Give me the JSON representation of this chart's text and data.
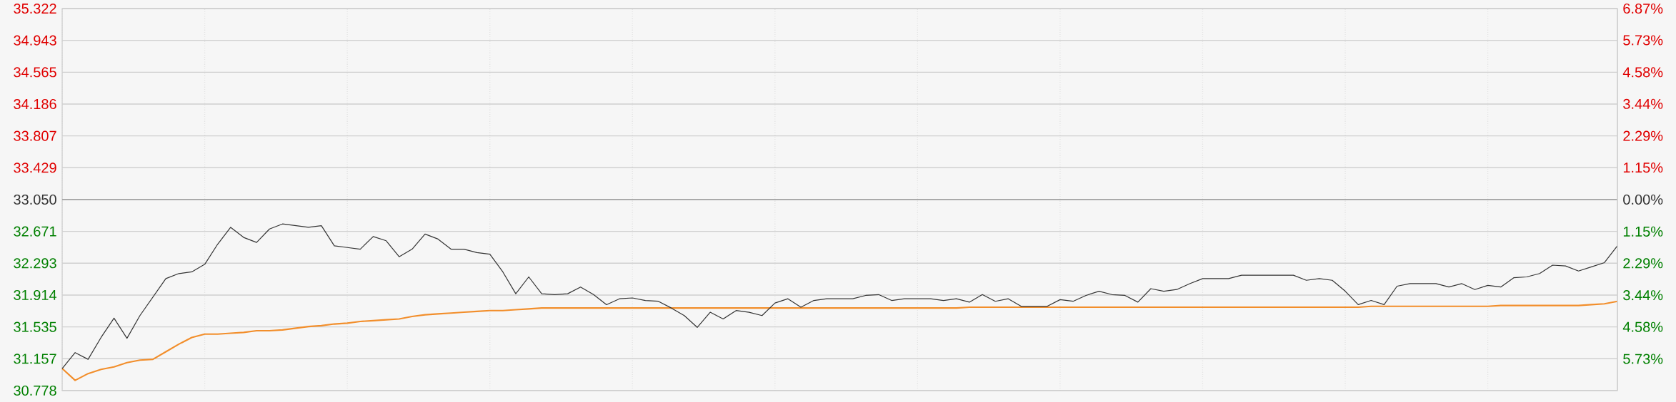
{
  "chart_data": {
    "type": "line",
    "categories": [
      null,
      null,
      null,
      null,
      null,
      null,
      null,
      null,
      null,
      null,
      null,
      null,
      null,
      null,
      null,
      null,
      null,
      null,
      null,
      null,
      null,
      null,
      null,
      null,
      null,
      null,
      null,
      null,
      null,
      null,
      null,
      null,
      null,
      null,
      null,
      null,
      null,
      null,
      null,
      null,
      null,
      null,
      null,
      null,
      null,
      null,
      null,
      null,
      null,
      null,
      null,
      null,
      null,
      null,
      null,
      null,
      null,
      null,
      null,
      null,
      null,
      null,
      null,
      null,
      null,
      null,
      null,
      null,
      null,
      null,
      null,
      null,
      null,
      null,
      null,
      null,
      null,
      null,
      null,
      null,
      null,
      null,
      null,
      null,
      null,
      null,
      null,
      null,
      null,
      null,
      null,
      null,
      null,
      null,
      null,
      null,
      null,
      null,
      null,
      null,
      null,
      null,
      null,
      null,
      null,
      null,
      null,
      null,
      null,
      null,
      null,
      null,
      null,
      null,
      null,
      null,
      null,
      null,
      null,
      null,
      null
    ],
    "series": [
      {
        "color": "#333333",
        "values": [
          31.04,
          31.23,
          31.15,
          31.41,
          31.64,
          31.4,
          31.67,
          31.89,
          32.11,
          32.17,
          32.19,
          32.28,
          32.52,
          32.72,
          32.6,
          32.54,
          32.7,
          32.76,
          32.74,
          32.72,
          32.74,
          32.5,
          32.48,
          32.46,
          32.61,
          32.56,
          32.37,
          32.46,
          32.64,
          32.58,
          32.46,
          32.46,
          32.42,
          32.4,
          32.19,
          31.93,
          32.13,
          31.93,
          31.92,
          31.93,
          32.01,
          31.92,
          31.8,
          31.87,
          31.88,
          31.85,
          31.84,
          31.76,
          31.67,
          31.53,
          31.71,
          31.63,
          31.73,
          31.71,
          31.67,
          31.82,
          31.87,
          31.77,
          31.85,
          31.87,
          31.87,
          31.87,
          31.91,
          31.92,
          31.85,
          31.87,
          31.87,
          31.87,
          31.85,
          31.87,
          31.83,
          31.92,
          31.84,
          31.87,
          31.78,
          31.78,
          31.78,
          31.86,
          31.84,
          31.91,
          31.96,
          31.92,
          31.91,
          31.83,
          31.99,
          31.96,
          31.98,
          32.05,
          32.11,
          32.11,
          32.11,
          32.15,
          32.15,
          32.15,
          32.15,
          32.15,
          32.09,
          32.11,
          32.09,
          31.96,
          31.8,
          31.85,
          31.8,
          32.02,
          32.05,
          32.05,
          32.05,
          32.01,
          32.05,
          31.98,
          32.03,
          32.01,
          32.12,
          32.13,
          32.17,
          32.27,
          32.26,
          32.2,
          32.25,
          32.3,
          32.5
        ]
      },
      {
        "color": "#f28e2b",
        "values": [
          31.04,
          30.9,
          30.98,
          31.03,
          31.06,
          31.11,
          31.14,
          31.15,
          31.24,
          31.33,
          31.41,
          31.45,
          31.45,
          31.46,
          31.47,
          31.49,
          31.49,
          31.5,
          31.52,
          31.54,
          31.55,
          31.57,
          31.58,
          31.6,
          31.61,
          31.62,
          31.63,
          31.66,
          31.68,
          31.69,
          31.7,
          31.71,
          31.72,
          31.73,
          31.73,
          31.74,
          31.75,
          31.76,
          31.76,
          31.76,
          31.76,
          31.76,
          31.76,
          31.76,
          31.76,
          31.76,
          31.76,
          31.76,
          31.76,
          31.76,
          31.76,
          31.76,
          31.76,
          31.76,
          31.76,
          31.76,
          31.76,
          31.76,
          31.76,
          31.76,
          31.76,
          31.76,
          31.76,
          31.76,
          31.76,
          31.76,
          31.76,
          31.76,
          31.76,
          31.76,
          31.77,
          31.77,
          31.77,
          31.77,
          31.77,
          31.77,
          31.77,
          31.77,
          31.77,
          31.77,
          31.77,
          31.77,
          31.77,
          31.77,
          31.77,
          31.77,
          31.77,
          31.77,
          31.77,
          31.77,
          31.77,
          31.77,
          31.77,
          31.77,
          31.77,
          31.77,
          31.77,
          31.77,
          31.77,
          31.77,
          31.77,
          31.78,
          31.78,
          31.78,
          31.78,
          31.78,
          31.78,
          31.78,
          31.78,
          31.78,
          31.78,
          31.79,
          31.79,
          31.79,
          31.79,
          31.79,
          31.79,
          31.79,
          31.8,
          31.81,
          31.84
        ]
      }
    ],
    "ylim": [
      30.778,
      35.322
    ],
    "yticks": [
      30.778,
      31.157,
      31.535,
      31.914,
      32.293,
      32.671,
      {
        "value": 33.05,
        "label": "33.050"
      },
      33.429,
      33.807,
      34.186,
      34.565,
      34.943,
      35.322
    ],
    "y2lim": [
      -6.87,
      6.87
    ],
    "y2ticks": [
      {
        "value": -6.87,
        "label": null
      },
      {
        "value": -5.73,
        "label": "5.73%"
      },
      {
        "value": -4.58,
        "label": "4.58%"
      },
      {
        "value": -3.44,
        "label": "3.44%"
      },
      {
        "value": -2.29,
        "label": "2.29%"
      },
      {
        "value": -1.15,
        "label": "1.15%"
      },
      {
        "value": 0,
        "label": "0.00%"
      },
      {
        "value": 1.15,
        "label": "1.15%"
      },
      {
        "value": 2.29,
        "label": "2.29%"
      },
      {
        "value": 3.44,
        "label": "3.44%"
      },
      {
        "value": 4.58,
        "label": "4.58%"
      },
      {
        "value": 5.73,
        "label": "5.73%"
      },
      {
        "value": 6.87,
        "label": "6.87%"
      }
    ],
    "ref_lines": [
      {
        "axis": "y",
        "value": 33.05,
        "color": "#9a9a9a"
      }
    ],
    "grid": true,
    "marker": "none",
    "line_style": "solid"
  }
}
